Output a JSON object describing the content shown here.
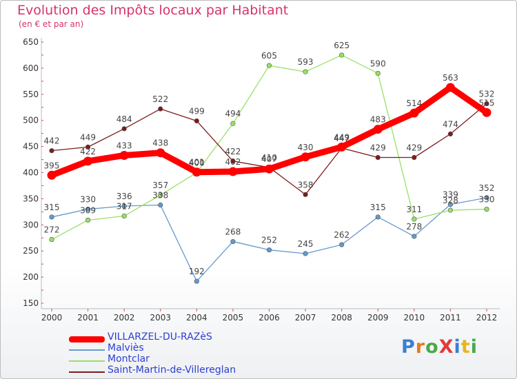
{
  "header": {
    "title": "Evolution des Impôts locaux par Habitant",
    "subtitle": "(en € et par an)"
  },
  "logo": {
    "text": "ProXiti",
    "colors": [
      "#3b7fd1",
      "#e87a1e",
      "#4aa84a",
      "#e23a3a",
      "#3b7fd1",
      "#e8b51e",
      "#4aa84a"
    ]
  },
  "chart_data": {
    "type": "line",
    "title": "Evolution des Impôts locaux par Habitant",
    "subtitle": "(en € et par an)",
    "xlabel": "",
    "ylabel": "",
    "ylim": [
      150,
      650
    ],
    "y_ticks": [
      150,
      200,
      250,
      300,
      350,
      400,
      450,
      500,
      550,
      600,
      650
    ],
    "grid": false,
    "legend_position": "bottom-left",
    "x": [
      "2000",
      "2001",
      "2002",
      "2003",
      "2004",
      "2005",
      "2006",
      "2007",
      "2008",
      "2009",
      "2010",
      "2011",
      "2012"
    ],
    "series": [
      {
        "name": "VILLARZEL-DU-RAZèS",
        "color": "#ff0000",
        "emphasis": true,
        "values": [
          395,
          422,
          433,
          438,
          401,
          402,
          407,
          430,
          449,
          483,
          514,
          563,
          515
        ]
      },
      {
        "name": "Malviès",
        "color": "#6699cc",
        "emphasis": false,
        "values": [
          315,
          330,
          336,
          338,
          192,
          268,
          252,
          245,
          262,
          315,
          278,
          339,
          352
        ]
      },
      {
        "name": "Montclar",
        "color": "#99e066",
        "emphasis": false,
        "values": [
          272,
          309,
          317,
          357,
          400,
          494,
          605,
          593,
          625,
          590,
          311,
          328,
          330
        ]
      },
      {
        "name": "Saint-Martin-de-Villereglan",
        "color": "#7b1c1c",
        "emphasis": false,
        "values": [
          442,
          449,
          484,
          522,
          499,
          422,
          410,
          358,
          447,
          429,
          429,
          474,
          532
        ]
      }
    ]
  }
}
